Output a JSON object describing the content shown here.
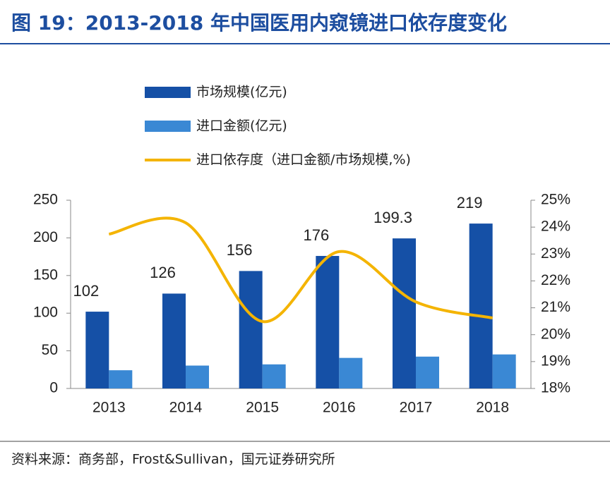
{
  "chart_data": {
    "type": "bar_line",
    "title": "图 19：2013-2018 年中国医用内窥镜进口依存度变化",
    "source": "资料来源：商务部，Frost&Sullivan，国元证券研究所",
    "categories": [
      "2013",
      "2014",
      "2015",
      "2016",
      "2017",
      "2018"
    ],
    "series": [
      {
        "name": "市场规模(亿元)",
        "type": "bar",
        "color": "#1550a6",
        "values": [
          102,
          126,
          156,
          176,
          199.3,
          219
        ],
        "show_labels": true
      },
      {
        "name": "进口金额(亿元)",
        "type": "bar",
        "color": "#3a88d4",
        "values": [
          24.2,
          30.4,
          32.0,
          40.6,
          42.3,
          45.2
        ]
      },
      {
        "name": "进口依存度（进口金额/市场规模,%)",
        "type": "line",
        "axis": "y2",
        "color": "#f4b400",
        "values": [
          23.74,
          24.16,
          20.49,
          23.09,
          21.22,
          20.62
        ]
      }
    ],
    "ylim": [
      0,
      250
    ],
    "yticks": [
      0,
      50,
      100,
      150,
      200,
      250
    ],
    "y2lim": [
      18,
      25
    ],
    "y2ticks": [
      {
        "value": 18,
        "label": "18%"
      },
      {
        "value": 19,
        "label": "19%"
      },
      {
        "value": 20,
        "label": "20%"
      },
      {
        "value": 21,
        "label": "21%"
      },
      {
        "value": 22,
        "label": "22%"
      },
      {
        "value": 23,
        "label": "23%"
      },
      {
        "value": 24,
        "label": "24%"
      },
      {
        "value": 25,
        "label": "25%"
      }
    ],
    "legend": "top-left"
  }
}
